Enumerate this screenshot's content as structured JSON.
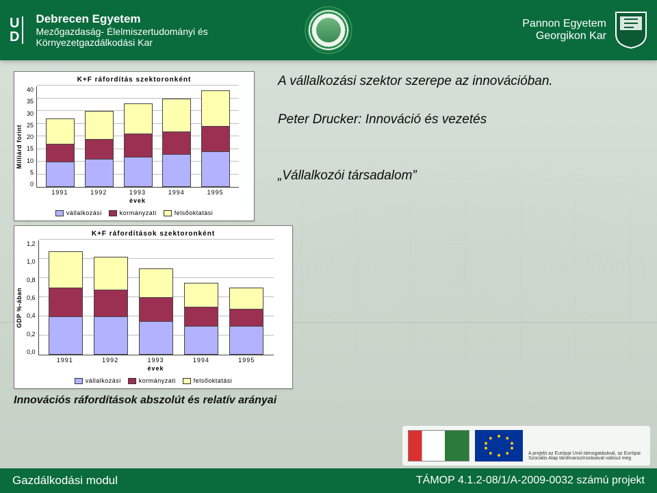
{
  "header": {
    "left": {
      "line1": "Debrecen Egyetem",
      "line2": "Mezőgazdaság- Élelmiszertudományi és",
      "line3": "Környezetgazdálkodási Kar"
    },
    "right": {
      "line1": "Pannon Egyetem",
      "line2": "Georgikon Kar"
    }
  },
  "footer": {
    "module": "Gazdálkodási modul",
    "project": "TÁMOP 4.1.2-08/1/A-2009-0032 számú projekt"
  },
  "sponsor_caption": "A projekt az Európai Unió támogatásával, az Európai Szociális Alap társfinanszírozásával valósul meg",
  "texts": {
    "t1": "A vállalkozási szektor szerepe az innovációban.",
    "t2": "Peter Drucker: Innováció és vezetés",
    "t3": "„Vállalkozói társadalom”"
  },
  "caption": "Innovációs ráfordítások abszolút és relatív arányai",
  "legend": {
    "s1": "vállalkozási",
    "s2": "kormányzati",
    "s3": "felsőoktatási"
  },
  "colors": {
    "s1": "#b2b2ff",
    "s2": "#9c3052",
    "s3": "#ffffb0",
    "grid": "#bfbfbf",
    "border": "#444444"
  },
  "chart1": {
    "title": "K+F ráfordítás szektoronként",
    "ylabel": "Milliárd forint",
    "xlabel": "évek",
    "ymax": 40,
    "ytick_step": 5,
    "categories": [
      "1991",
      "1992",
      "1993",
      "1994",
      "1995"
    ],
    "series": {
      "vallalkozasi": [
        10,
        11,
        12,
        13,
        14
      ],
      "kormanyzati": [
        7,
        8,
        9,
        9,
        10
      ],
      "felsooktatasi": [
        10,
        11,
        12,
        13,
        14
      ]
    }
  },
  "chart2": {
    "title": "K+F ráfordítások szektoronként",
    "ylabel": "GDP %-ában",
    "xlabel": "évek",
    "ymax": 1.2,
    "ytick_step": 0.2,
    "categories": [
      "1991",
      "1992",
      "1993",
      "1994",
      "1995"
    ],
    "series": {
      "vallalkozasi": [
        0.4,
        0.4,
        0.35,
        0.3,
        0.3
      ],
      "kormanyzati": [
        0.3,
        0.28,
        0.25,
        0.2,
        0.18
      ],
      "felsooktatasi": [
        0.38,
        0.34,
        0.3,
        0.25,
        0.22
      ]
    }
  }
}
